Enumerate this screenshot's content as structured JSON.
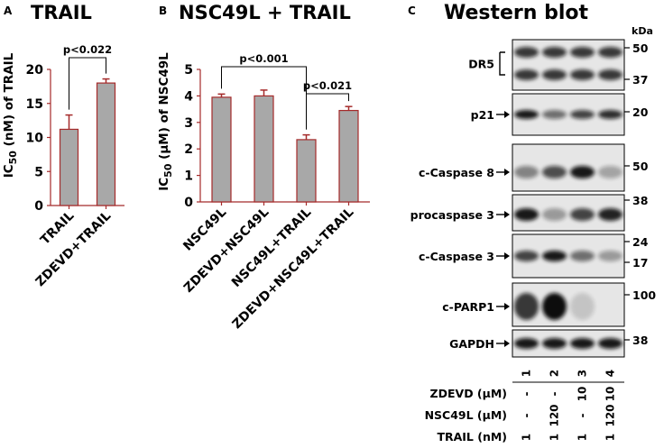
{
  "colors": {
    "bar": "#a8a8a8",
    "bar_edge": "#a52a2a",
    "axis": "#a52a2a",
    "ink": "#000000"
  },
  "chart_data": [
    {
      "type": "bar",
      "panel": "A",
      "title": "TRAIL",
      "ylabel_main": "IC",
      "ylabel_sub": "50",
      "ylabel_rest": " (nM) of TRAIL",
      "categories": [
        "TRAIL",
        "ZDEVD+TRAIL"
      ],
      "values": [
        11.2,
        18.0
      ],
      "errors": [
        2.1,
        0.6
      ],
      "ylim": [
        0,
        20
      ],
      "yticks": [
        0,
        5,
        10,
        15,
        20
      ],
      "comparisons": [
        {
          "label": "p<0.022",
          "from": 0,
          "to": 1
        }
      ]
    },
    {
      "type": "bar",
      "panel": "B",
      "title": "NSC49L + TRAIL",
      "ylabel_main": "IC",
      "ylabel_sub": "50",
      "ylabel_unit": "μM",
      "ylabel_rest": " of NSC49L",
      "categories": [
        "NSC49L",
        "ZDEVD+NSC49L",
        "NSC49L+TRAIL",
        "ZDEVD+NSC49L+TRAIL"
      ],
      "values": [
        3.95,
        4.0,
        2.35,
        3.45
      ],
      "errors": [
        0.12,
        0.22,
        0.18,
        0.15
      ],
      "ylim": [
        0,
        5
      ],
      "yticks": [
        0,
        1,
        2,
        3,
        4,
        5
      ],
      "comparisons": [
        {
          "label": "p<0.001",
          "from": 0,
          "to": 2
        },
        {
          "label": "p<0.021",
          "from": 2,
          "to": 3
        }
      ]
    }
  ],
  "western": {
    "panel": "C",
    "title": "Western blot",
    "kda_label": "kDa",
    "bands": [
      {
        "label": "DR5",
        "markers": [
          "50",
          "37"
        ],
        "intensity": [
          0.8,
          0.8,
          0.8,
          0.8
        ]
      },
      {
        "label": "p21",
        "markers": [
          "20"
        ],
        "intensity": [
          0.95,
          0.55,
          0.75,
          0.85
        ]
      },
      {
        "label": "c-Caspase 8",
        "markers": [
          "50"
        ],
        "intensity": [
          0.45,
          0.7,
          0.95,
          0.3
        ]
      },
      {
        "label": "procaspase 3",
        "markers": [
          "38"
        ],
        "intensity": [
          0.95,
          0.35,
          0.75,
          0.9
        ]
      },
      {
        "label": "c-Caspase 3",
        "markers": [
          "24",
          "17"
        ],
        "intensity": [
          0.75,
          0.95,
          0.55,
          0.35
        ]
      },
      {
        "label": "c-PARP1",
        "markers": [
          "100"
        ],
        "intensity": [
          0.8,
          1.0,
          0.15,
          0.0
        ]
      },
      {
        "label": "GAPDH",
        "markers": [
          "38"
        ],
        "intensity": [
          0.95,
          0.95,
          0.95,
          0.95
        ]
      }
    ],
    "lanes": [
      "1",
      "2",
      "3",
      "4"
    ],
    "conditions": [
      {
        "name": "ZDEVD",
        "unit": "μM",
        "values": [
          "-",
          "-",
          "10",
          "10"
        ]
      },
      {
        "name": "NSC49L",
        "unit": "μM",
        "values": [
          "-",
          "120",
          "-",
          "120"
        ]
      },
      {
        "name": "TRAIL",
        "unit": "nM",
        "values": [
          "1",
          "1",
          "1",
          "1"
        ]
      }
    ]
  }
}
